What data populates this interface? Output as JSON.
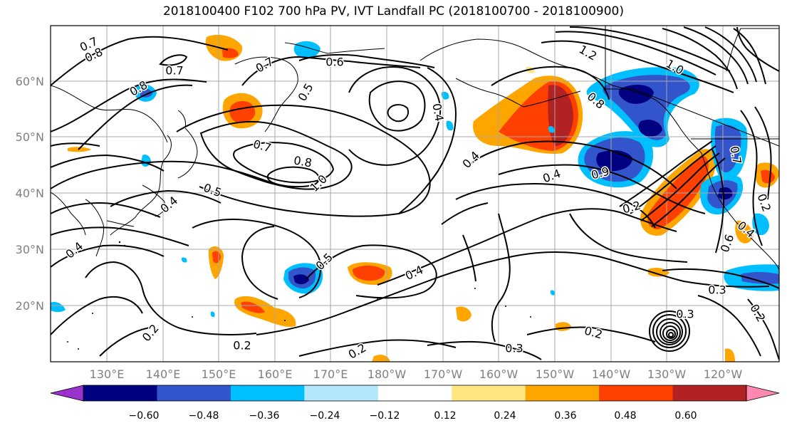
{
  "title": "2018100400 F102 700 hPa PV, IVT Landfall PC (2018100700 - 2018100900)",
  "lat_labels": [
    "60°N",
    "50°N",
    "40°N",
    "30°N",
    "20°N"
  ],
  "lon_labels": [
    "130°E",
    "140°E",
    "150°E",
    "160°E",
    "170°E",
    "180°W",
    "170°W",
    "160°W",
    "150°W",
    "140°W",
    "130°W",
    "120°W"
  ],
  "colorbar": {
    "tick_labels": [
      "−0.60",
      "−0.48",
      "−0.36",
      "−0.24",
      "−0.12",
      "0.12",
      "0.24",
      "0.36",
      "0.48",
      "0.60"
    ],
    "colors": [
      "#9933cc",
      "#000080",
      "#3355cc",
      "#00bfff",
      "#b3e5fc",
      "#ffffff",
      "#ffe680",
      "#ffa500",
      "#ff4000",
      "#b22222",
      "#ff88b0"
    ]
  },
  "contour_labels": [
    {
      "text": "0.7"
    },
    {
      "text": "0.8"
    },
    {
      "text": "0.8"
    },
    {
      "text": "0.7"
    },
    {
      "text": "0.5"
    },
    {
      "text": "0.6"
    },
    {
      "text": "0.7"
    },
    {
      "text": "0.7"
    },
    {
      "text": "0.8"
    },
    {
      "text": "1.0"
    },
    {
      "text": "0.5"
    },
    {
      "text": "0.4"
    },
    {
      "text": "0.4"
    },
    {
      "text": "1.2"
    },
    {
      "text": "0.8"
    },
    {
      "text": "0.4"
    },
    {
      "text": "0.9"
    },
    {
      "text": "1.0"
    },
    {
      "text": "0.4"
    },
    {
      "text": "0.2"
    },
    {
      "text": "0.5"
    },
    {
      "text": "0.4"
    },
    {
      "text": "0.3"
    },
    {
      "text": "0.2"
    },
    {
      "text": "0.2"
    },
    {
      "text": "0.2"
    },
    {
      "text": "0.3"
    },
    {
      "text": "0.2"
    },
    {
      "text": "0.2"
    },
    {
      "text": "0.3"
    },
    {
      "text": "0.6"
    },
    {
      "text": "0.4"
    },
    {
      "text": "0.2"
    },
    {
      "text": "0.7"
    },
    {
      "text": "0.4"
    }
  ]
}
